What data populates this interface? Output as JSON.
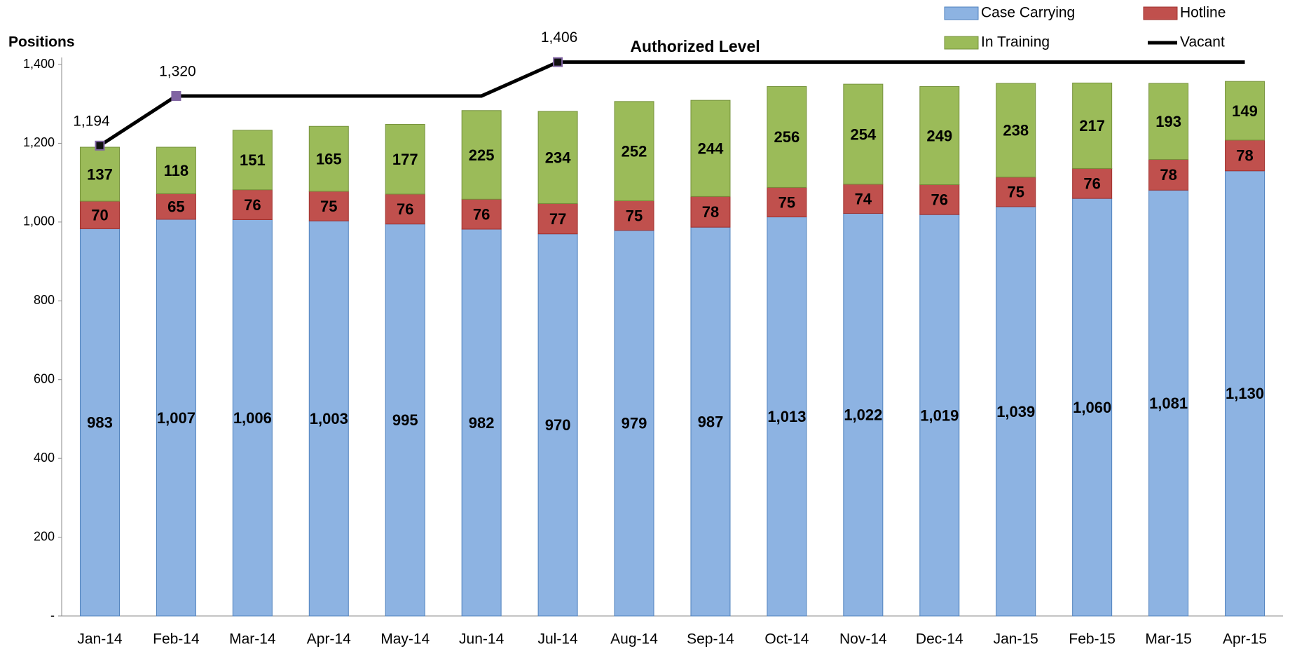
{
  "chart_data": {
    "type": "stacked_bar_line",
    "y_label": "Positions",
    "annotation": "Authorized Level",
    "categories": [
      "Jan-14",
      "Feb-14",
      "Mar-14",
      "Apr-14",
      "May-14",
      "Jun-14",
      "Jul-14",
      "Aug-14",
      "Sep-14",
      "Oct-14",
      "Nov-14",
      "Dec-14",
      "Jan-15",
      "Feb-15",
      "Mar-15",
      "Apr-15"
    ],
    "series": [
      {
        "name": "Case Carrying",
        "color": "#8db3e2",
        "values": [
          983,
          1007,
          1006,
          1003,
          995,
          982,
          970,
          979,
          987,
          1013,
          1022,
          1019,
          1039,
          1060,
          1081,
          1130
        ],
        "value_labels": [
          "983",
          "1,007",
          "1,006",
          "1,003",
          "995",
          "982",
          "970",
          "979",
          "987",
          "1,013",
          "1,022",
          "1,019",
          "1,039",
          "1,060",
          "1,081",
          "1,130"
        ]
      },
      {
        "name": "Hotline",
        "color": "#c0504d",
        "values": [
          70,
          65,
          76,
          75,
          76,
          76,
          77,
          75,
          78,
          75,
          74,
          76,
          75,
          76,
          78,
          78
        ]
      },
      {
        "name": "In Training",
        "color": "#9bbb59",
        "values": [
          137,
          118,
          151,
          165,
          177,
          225,
          234,
          252,
          244,
          256,
          254,
          249,
          238,
          217,
          193,
          149
        ]
      },
      {
        "name": "Vacant",
        "color": "#000000",
        "kind": "line",
        "values": [
          1194,
          1320,
          1320,
          1320,
          1320,
          1320,
          1406,
          1406,
          1406,
          1406,
          1406,
          1406,
          1406,
          1406,
          1406,
          1406
        ],
        "value_labels": [
          "1,194",
          "1,320",
          null,
          null,
          null,
          null,
          "1,406",
          null,
          null,
          null,
          null,
          null,
          null,
          null,
          null,
          null
        ]
      }
    ],
    "ylim": [
      0,
      1400
    ],
    "yticks": [
      {
        "value": 0,
        "label": "-"
      },
      200,
      400,
      600,
      800,
      {
        "value": 1000,
        "label": "1,000"
      },
      {
        "value": 1200,
        "label": "1,200"
      },
      {
        "value": 1400,
        "label": "1,400"
      }
    ],
    "grid": false,
    "legend": "top-right"
  }
}
